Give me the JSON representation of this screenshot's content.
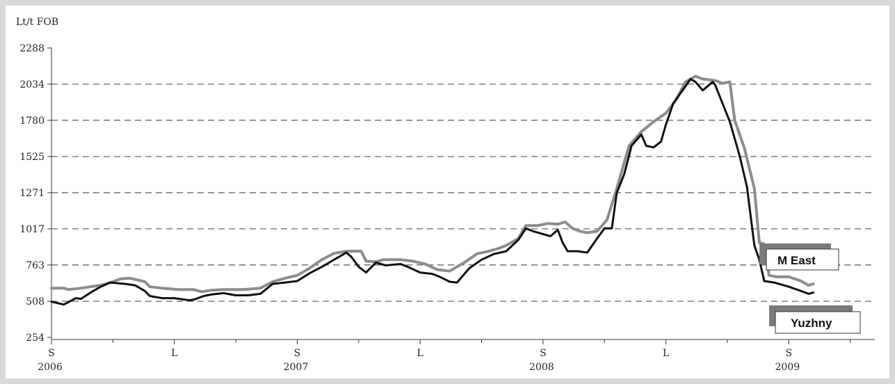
{
  "chart_data": {
    "type": "line",
    "title": "",
    "unit_label": "Lt/t  FOB",
    "xlabel": "",
    "ylabel": "",
    "ylim": [
      254,
      2288
    ],
    "yticks": [
      254,
      508,
      763,
      1017,
      1271,
      1525,
      1780,
      2034,
      2288
    ],
    "grid": "dashed horizontal",
    "x_ticks": [
      {
        "label": "S",
        "year": "2006",
        "x": 0
      },
      {
        "label": "L",
        "year": "",
        "x": 0.5
      },
      {
        "label": "S",
        "year": "2007",
        "x": 1
      },
      {
        "label": "L",
        "year": "",
        "x": 1.5
      },
      {
        "label": "S",
        "year": "2008",
        "x": 2
      },
      {
        "label": "L",
        "year": "",
        "x": 2.5
      },
      {
        "label": "S",
        "year": "2009",
        "x": 3
      }
    ],
    "xlim": [
      0,
      3.35
    ],
    "series": [
      {
        "name": "M East",
        "color": "#8c8c8c",
        "points": [
          [
            0,
            600
          ],
          [
            0.05,
            600
          ],
          [
            0.07,
            590
          ],
          [
            0.12,
            600
          ],
          [
            0.2,
            620
          ],
          [
            0.25,
            645
          ],
          [
            0.28,
            665
          ],
          [
            0.32,
            670
          ],
          [
            0.38,
            645
          ],
          [
            0.4,
            610
          ],
          [
            0.45,
            600
          ],
          [
            0.52,
            590
          ],
          [
            0.58,
            590
          ],
          [
            0.61,
            575
          ],
          [
            0.65,
            585
          ],
          [
            0.7,
            590
          ],
          [
            0.78,
            590
          ],
          [
            0.85,
            600
          ],
          [
            0.9,
            645
          ],
          [
            0.95,
            670
          ],
          [
            1.0,
            690
          ],
          [
            1.05,
            740
          ],
          [
            1.1,
            800
          ],
          [
            1.15,
            845
          ],
          [
            1.2,
            860
          ],
          [
            1.26,
            860
          ],
          [
            1.28,
            790
          ],
          [
            1.32,
            785
          ],
          [
            1.35,
            800
          ],
          [
            1.42,
            800
          ],
          [
            1.47,
            790
          ],
          [
            1.52,
            770
          ],
          [
            1.57,
            730
          ],
          [
            1.62,
            720
          ],
          [
            1.68,
            780
          ],
          [
            1.73,
            840
          ],
          [
            1.78,
            860
          ],
          [
            1.82,
            880
          ],
          [
            1.85,
            900
          ],
          [
            1.9,
            950
          ],
          [
            1.93,
            1040
          ],
          [
            1.98,
            1040
          ],
          [
            2.02,
            1055
          ],
          [
            2.06,
            1050
          ],
          [
            2.09,
            1065
          ],
          [
            2.12,
            1020
          ],
          [
            2.15,
            1000
          ],
          [
            2.18,
            990
          ],
          [
            2.22,
            1000
          ],
          [
            2.26,
            1080
          ],
          [
            2.3,
            1300
          ],
          [
            2.35,
            1600
          ],
          [
            2.4,
            1700
          ],
          [
            2.45,
            1770
          ],
          [
            2.5,
            1830
          ],
          [
            2.54,
            1920
          ],
          [
            2.58,
            2050
          ],
          [
            2.62,
            2090
          ],
          [
            2.65,
            2070
          ],
          [
            2.7,
            2060
          ],
          [
            2.73,
            2040
          ],
          [
            2.76,
            2050
          ],
          [
            2.78,
            1780
          ],
          [
            2.82,
            1580
          ],
          [
            2.86,
            1300
          ],
          [
            2.88,
            920
          ],
          [
            2.9,
            910
          ],
          [
            2.92,
            690
          ],
          [
            2.95,
            680
          ],
          [
            3.0,
            680
          ],
          [
            3.05,
            650
          ],
          [
            3.08,
            620
          ],
          [
            3.1,
            630
          ]
        ]
      },
      {
        "name": "Yuzhny",
        "color": "#111111",
        "points": [
          [
            0,
            505
          ],
          [
            0.05,
            485
          ],
          [
            0.1,
            530
          ],
          [
            0.12,
            525
          ],
          [
            0.16,
            570
          ],
          [
            0.2,
            610
          ],
          [
            0.24,
            640
          ],
          [
            0.27,
            635
          ],
          [
            0.3,
            630
          ],
          [
            0.34,
            620
          ],
          [
            0.38,
            580
          ],
          [
            0.4,
            545
          ],
          [
            0.45,
            530
          ],
          [
            0.5,
            530
          ],
          [
            0.56,
            515
          ],
          [
            0.58,
            520
          ],
          [
            0.62,
            545
          ],
          [
            0.65,
            555
          ],
          [
            0.7,
            565
          ],
          [
            0.75,
            550
          ],
          [
            0.8,
            550
          ],
          [
            0.85,
            560
          ],
          [
            0.9,
            630
          ],
          [
            0.95,
            640
          ],
          [
            1.0,
            650
          ],
          [
            1.05,
            705
          ],
          [
            1.1,
            750
          ],
          [
            1.15,
            800
          ],
          [
            1.2,
            850
          ],
          [
            1.22,
            820
          ],
          [
            1.25,
            750
          ],
          [
            1.28,
            710
          ],
          [
            1.32,
            780
          ],
          [
            1.36,
            760
          ],
          [
            1.42,
            770
          ],
          [
            1.45,
            750
          ],
          [
            1.5,
            710
          ],
          [
            1.55,
            700
          ],
          [
            1.58,
            680
          ],
          [
            1.62,
            645
          ],
          [
            1.65,
            640
          ],
          [
            1.7,
            740
          ],
          [
            1.75,
            800
          ],
          [
            1.8,
            840
          ],
          [
            1.85,
            860
          ],
          [
            1.9,
            940
          ],
          [
            1.93,
            1020
          ],
          [
            1.96,
            1000
          ],
          [
            2.0,
            980
          ],
          [
            2.03,
            965
          ],
          [
            2.06,
            1010
          ],
          [
            2.08,
            920
          ],
          [
            2.1,
            860
          ],
          [
            2.14,
            860
          ],
          [
            2.18,
            850
          ],
          [
            2.22,
            950
          ],
          [
            2.25,
            1020
          ],
          [
            2.28,
            1020
          ],
          [
            2.3,
            1270
          ],
          [
            2.33,
            1400
          ],
          [
            2.36,
            1600
          ],
          [
            2.4,
            1680
          ],
          [
            2.42,
            1600
          ],
          [
            2.45,
            1590
          ],
          [
            2.48,
            1630
          ],
          [
            2.5,
            1750
          ],
          [
            2.53,
            1900
          ],
          [
            2.58,
            2020
          ],
          [
            2.6,
            2070
          ],
          [
            2.62,
            2050
          ],
          [
            2.65,
            1990
          ],
          [
            2.69,
            2050
          ],
          [
            2.7,
            2030
          ],
          [
            2.73,
            1900
          ],
          [
            2.76,
            1770
          ],
          [
            2.8,
            1530
          ],
          [
            2.83,
            1310
          ],
          [
            2.86,
            900
          ],
          [
            2.88,
            800
          ],
          [
            2.9,
            650
          ],
          [
            2.94,
            640
          ],
          [
            3.0,
            610
          ],
          [
            3.05,
            580
          ],
          [
            3.08,
            560
          ],
          [
            3.1,
            570
          ]
        ]
      }
    ],
    "legend": [
      {
        "name": "M East",
        "placement": "right, mid"
      },
      {
        "name": "Yuzhny",
        "placement": "right, bottom"
      }
    ]
  }
}
